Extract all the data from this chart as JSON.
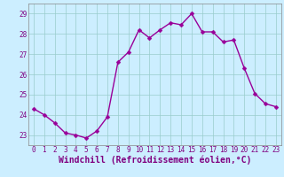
{
  "x": [
    0,
    1,
    2,
    3,
    4,
    5,
    6,
    7,
    8,
    9,
    10,
    11,
    12,
    13,
    14,
    15,
    16,
    17,
    18,
    19,
    20,
    21,
    22,
    23
  ],
  "y": [
    24.3,
    24.0,
    23.6,
    23.1,
    23.0,
    22.85,
    23.2,
    23.9,
    26.6,
    27.1,
    28.2,
    27.8,
    28.2,
    28.55,
    28.45,
    29.0,
    28.1,
    28.1,
    27.6,
    27.7,
    26.3,
    25.05,
    24.55,
    24.4
  ],
  "line_color": "#990099",
  "marker": "D",
  "marker_size": 2.5,
  "line_width": 1.0,
  "bg_color": "#cceeff",
  "grid_color": "#99cccc",
  "xlabel": "Windchill (Refroidissement éolien,°C)",
  "xlabel_color": "#800080",
  "xlim": [
    -0.5,
    23.5
  ],
  "ylim": [
    22.5,
    29.5
  ],
  "yticks": [
    23,
    24,
    25,
    26,
    27,
    28,
    29
  ],
  "xticks": [
    0,
    1,
    2,
    3,
    4,
    5,
    6,
    7,
    8,
    9,
    10,
    11,
    12,
    13,
    14,
    15,
    16,
    17,
    18,
    19,
    20,
    21,
    22,
    23
  ],
  "tick_color": "#800080",
  "tick_fontsize": 5.5,
  "xlabel_fontsize": 7.0,
  "spine_color": "#888888"
}
